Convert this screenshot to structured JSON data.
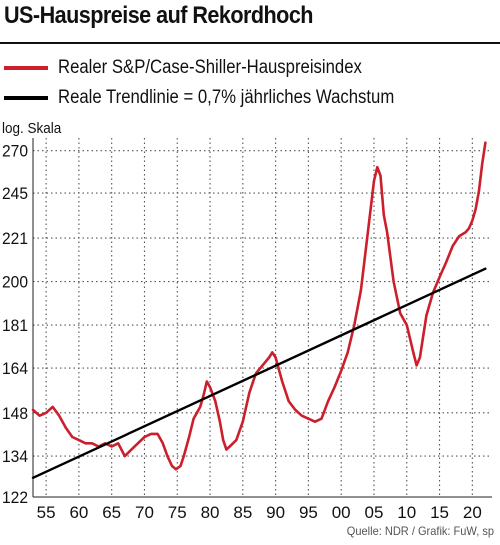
{
  "header": {
    "title": "US-Hauspreise auf Rekordhoch"
  },
  "source": "Quelle: NDR / Grafik: FuW, sp",
  "colors": {
    "series_red": "#cc1f2c",
    "trend_black": "#000000",
    "grid": "#555555"
  },
  "chart_data": {
    "type": "line",
    "title": "US-Hauspreise auf Rekordhoch",
    "y_scale": "log",
    "y_scale_label": "log. Skala",
    "xlabel": "",
    "ylabel": "",
    "xlim": [
      1953,
      2023
    ],
    "ylim": [
      122,
      278
    ],
    "x_ticks": [
      1955,
      1960,
      1965,
      1970,
      1975,
      1980,
      1985,
      1990,
      1995,
      2000,
      2005,
      2010,
      2015,
      2020
    ],
    "x_tick_labels": [
      "55",
      "60",
      "65",
      "70",
      "75",
      "80",
      "85",
      "90",
      "95",
      "00",
      "05",
      "10",
      "15",
      "20"
    ],
    "y_ticks": [
      122,
      134,
      148,
      164,
      181,
      200,
      221,
      245,
      270
    ],
    "grid": true,
    "legend_position": "top",
    "series": [
      {
        "name": "Realer S&P/Case-Shiller-Hauspreisindex",
        "color": "#cc1f2c",
        "x": [
          1953.0,
          1954.0,
          1955.0,
          1956.0,
          1957.0,
          1958.0,
          1959.0,
          1960.0,
          1961.0,
          1962.0,
          1963.0,
          1964.0,
          1965.0,
          1966.0,
          1967.0,
          1968.0,
          1969.0,
          1970.0,
          1971.0,
          1972.0,
          1972.8,
          1973.5,
          1974.2,
          1974.8,
          1975.5,
          1976.0,
          1976.8,
          1977.5,
          1978.5,
          1979.0,
          1979.5,
          1980.0,
          1980.8,
          1981.5,
          1982.0,
          1982.5,
          1983.0,
          1983.5,
          1984.0,
          1985.0,
          1986.0,
          1987.0,
          1988.0,
          1989.0,
          1989.5,
          1990.0,
          1991.0,
          1992.0,
          1993.0,
          1994.0,
          1995.0,
          1996.0,
          1997.0,
          1998.0,
          1999.0,
          2000.0,
          2001.0,
          2002.0,
          2003.0,
          2004.0,
          2005.0,
          2005.5,
          2006.0,
          2006.5,
          2007.0,
          2008.0,
          2009.0,
          2010.0,
          2011.0,
          2011.5,
          2012.0,
          2013.0,
          2014.0,
          2015.0,
          2016.0,
          2017.0,
          2018.0,
          2019.0,
          2019.5,
          2020.0,
          2020.5,
          2021.0,
          2021.5,
          2022.0
        ],
        "y": [
          149,
          147,
          148,
          150,
          147,
          143,
          140,
          139,
          138,
          138,
          137,
          138,
          137,
          138,
          134,
          136,
          138,
          140,
          141,
          141,
          138,
          134,
          131,
          130,
          131,
          134,
          140,
          146,
          150,
          154,
          159,
          157,
          152,
          145,
          139,
          136,
          137,
          138,
          139,
          145,
          155,
          162,
          165,
          168,
          170,
          168,
          159,
          152,
          149,
          147,
          146,
          145,
          146,
          152,
          157,
          163,
          170,
          181,
          196,
          222,
          252,
          260,
          255,
          233,
          224,
          200,
          186,
          181,
          170,
          165,
          168,
          185,
          195,
          202,
          209,
          217,
          222,
          224,
          226,
          230,
          236,
          246,
          262,
          275
        ]
      },
      {
        "name": "Reale Trendlinie = 0,7% jährliches Wachstum",
        "color": "#000000",
        "x": [
          1953.0,
          2022.0
        ],
        "y": [
          127.5,
          206
        ]
      }
    ]
  }
}
